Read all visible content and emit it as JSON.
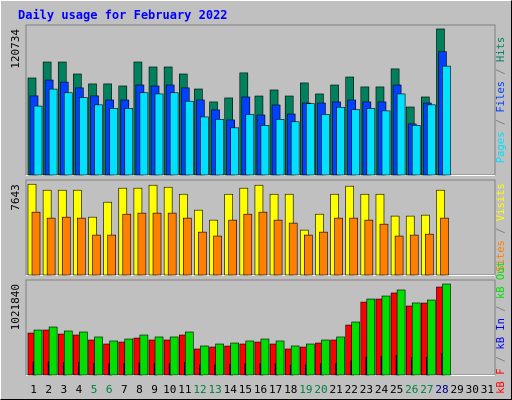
{
  "title": "Daily usage for February 2022",
  "separator": " / ",
  "chart_data": [
    {
      "type": "bar",
      "ylim": [
        0,
        124000
      ],
      "yticks": [
        120734
      ],
      "reverse_bars": true,
      "series": [
        {
          "name": "Pages",
          "color": "#00e0ff",
          "values": [
            57000,
            71000,
            68000,
            64000,
            58000,
            55000,
            55000,
            68000,
            67000,
            68000,
            61000,
            48000,
            46000,
            39000,
            50000,
            41000,
            46000,
            44000,
            59000,
            50000,
            56000,
            54000,
            55000,
            53000,
            67000,
            41000,
            58000,
            90000,
            null,
            null,
            null
          ]
        },
        {
          "name": "Files",
          "color": "#0040ff",
          "values": [
            65400,
            78500,
            76800,
            72000,
            65400,
            62000,
            62000,
            74400,
            73600,
            74400,
            72000,
            62000,
            53800,
            45500,
            64500,
            49600,
            57900,
            50400,
            59500,
            59500,
            60400,
            62000,
            60400,
            60400,
            74400,
            42200,
            59500,
            102000,
            null,
            null,
            null
          ]
        },
        {
          "name": "Hits",
          "color": "#00805c",
          "values": [
            80200,
            93400,
            93400,
            83500,
            75300,
            75300,
            73600,
            93400,
            89300,
            89300,
            83500,
            71100,
            60400,
            63700,
            84400,
            65300,
            70300,
            65300,
            76100,
            67000,
            74400,
            81000,
            72800,
            72800,
            87700,
            56200,
            64500,
            120734,
            null,
            null,
            null
          ]
        }
      ]
    },
    {
      "type": "bar",
      "ylim": [
        0,
        8000
      ],
      "yticks": [
        7643
      ],
      "reverse_bars": true,
      "series": [
        {
          "name": "Sites",
          "color": "#ff8000",
          "values": [
            5290,
            4790,
            4870,
            4790,
            3360,
            3360,
            5120,
            5210,
            5210,
            5210,
            4790,
            3610,
            3280,
            4620,
            5120,
            5290,
            4620,
            4370,
            3360,
            3610,
            4790,
            4790,
            4620,
            4280,
            3280,
            3360,
            3440,
            4790,
            null,
            null,
            null
          ]
        },
        {
          "name": "Visits",
          "color": "#ffff00",
          "values": [
            7643,
            7140,
            7140,
            7140,
            4870,
            6130,
            7310,
            7310,
            7560,
            7390,
            6800,
            5460,
            4620,
            6800,
            7310,
            7560,
            6800,
            6800,
            3780,
            5120,
            6800,
            7480,
            6800,
            6800,
            4960,
            4960,
            5040,
            7140,
            null,
            null,
            null
          ]
        }
      ]
    },
    {
      "type": "bar",
      "ylim": [
        0,
        1067000
      ],
      "yticks": [
        1021840
      ],
      "reverse_bars": false,
      "categories": [
        "1",
        "2",
        "3",
        "4",
        "5",
        "6",
        "7",
        "8",
        "9",
        "10",
        "11",
        "12",
        "13",
        "14",
        "15",
        "16",
        "17",
        "18",
        "19",
        "20",
        "21",
        "22",
        "23",
        "24",
        "25",
        "26",
        "27",
        "28",
        "29",
        "30",
        "31"
      ],
      "label_colors": [
        "#000000",
        "#000000",
        "#000000",
        "#000000",
        "#008040",
        "#008040",
        "#000000",
        "#000000",
        "#000000",
        "#000000",
        "#000000",
        "#008040",
        "#008040",
        "#000000",
        "#000000",
        "#000000",
        "#000000",
        "#000000",
        "#008040",
        "#008040",
        "#000000",
        "#000000",
        "#000000",
        "#000000",
        "#000000",
        "#008040",
        "#008040",
        "#000080",
        "#000000",
        "#000000",
        "#000000"
      ],
      "series": [
        {
          "name": "kB F",
          "color": "#ff0000",
          "values": [
            471000,
            505000,
            460000,
            449000,
            393000,
            348000,
            370000,
            415000,
            393000,
            393000,
            449000,
            292000,
            314000,
            325000,
            348000,
            370000,
            348000,
            292000,
            314000,
            359000,
            393000,
            561000,
            819000,
            853000,
            921000,
            775000,
            808000,
            988000,
            null,
            null,
            null
          ]
        },
        {
          "name": "kB In",
          "color": "#0000ff",
          "values": [
            146000,
            150000,
            140000,
            140000,
            130000,
            125000,
            128000,
            135000,
            130000,
            130000,
            140000,
            110000,
            115000,
            118000,
            125000,
            128000,
            125000,
            110000,
            115000,
            125000,
            130000,
            160000,
            200000,
            210000,
            220000,
            195000,
            200000,
            240000,
            null,
            null,
            null
          ]
        },
        {
          "name": "kB Out",
          "color": "#00e000",
          "values": [
            505000,
            539000,
            494000,
            483000,
            427000,
            382000,
            404000,
            449000,
            427000,
            427000,
            483000,
            326000,
            348000,
            359000,
            382000,
            404000,
            382000,
            326000,
            348000,
            393000,
            427000,
            595000,
            853000,
            887000,
            955000,
            809000,
            842000,
            1021840,
            null,
            null,
            null
          ]
        }
      ]
    }
  ]
}
